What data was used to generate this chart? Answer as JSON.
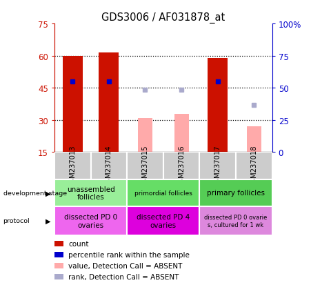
{
  "title": "GDS3006 / AF031878_at",
  "samples": [
    "GSM237013",
    "GSM237014",
    "GSM237015",
    "GSM237016",
    "GSM237017",
    "GSM237018"
  ],
  "count_values": [
    60,
    61.5,
    null,
    null,
    59,
    null
  ],
  "count_color": "#cc1100",
  "rank_values": [
    48,
    48,
    null,
    null,
    48,
    null
  ],
  "rank_color": "#0000cc",
  "absent_value": [
    null,
    null,
    31,
    33,
    null,
    27
  ],
  "absent_value_color": "#ffaaaa",
  "absent_rank": [
    null,
    null,
    44,
    44,
    null,
    37
  ],
  "absent_rank_color": "#aaaacc",
  "ylim_left": [
    15,
    75
  ],
  "ylim_right": [
    0,
    100
  ],
  "yticks_left": [
    15,
    30,
    45,
    60,
    75
  ],
  "yticks_right": [
    0,
    25,
    50,
    75,
    100
  ],
  "ytick_labels_left": [
    "15",
    "30",
    "45",
    "60",
    "75"
  ],
  "ytick_labels_right": [
    "0",
    "25",
    "50",
    "75",
    "100%"
  ],
  "hlines": [
    30,
    45,
    60
  ],
  "dev_stage_info": [
    {
      "start": 0,
      "end": 2,
      "label": "unassembled\nfollicles",
      "color": "#99ee99",
      "fontsize": 7.5
    },
    {
      "start": 2,
      "end": 4,
      "label": "primordial follicles",
      "color": "#66dd66",
      "fontsize": 6.5
    },
    {
      "start": 4,
      "end": 6,
      "label": "primary follicles",
      "color": "#55cc55",
      "fontsize": 7.5
    }
  ],
  "protocol_info": [
    {
      "start": 0,
      "end": 2,
      "label": "dissected PD 0\novaries",
      "color": "#ee66ee",
      "fontsize": 7.5
    },
    {
      "start": 2,
      "end": 4,
      "label": "dissected PD 4\novaries",
      "color": "#dd00dd",
      "fontsize": 7.5
    },
    {
      "start": 4,
      "end": 6,
      "label": "dissected PD 0 ovarie\ns, cultured for 1 wk",
      "color": "#dd88dd",
      "fontsize": 6.0
    }
  ],
  "legend_items": [
    {
      "label": "count",
      "color": "#cc1100"
    },
    {
      "label": "percentile rank within the sample",
      "color": "#0000cc"
    },
    {
      "label": "value, Detection Call = ABSENT",
      "color": "#ffaaaa"
    },
    {
      "label": "rank, Detection Call = ABSENT",
      "color": "#aaaacc"
    }
  ],
  "left_axis_color": "#cc1100",
  "right_axis_color": "#0000cc",
  "sample_box_color": "#cccccc",
  "plot_bg": "#ffffff"
}
